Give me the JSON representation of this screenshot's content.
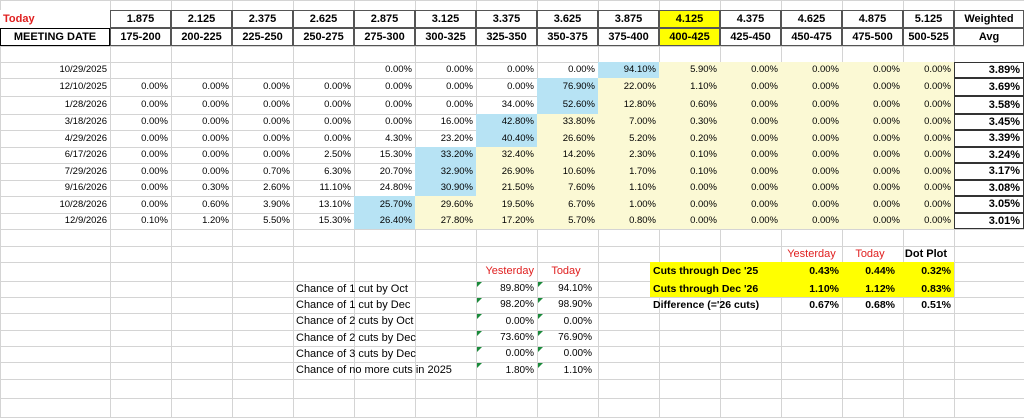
{
  "header": {
    "today_label": "Today",
    "meeting_date_label": "MEETING DATE",
    "weighted_label": "Weighted",
    "avg_label": "Avg",
    "midpoints": [
      "1.875",
      "2.125",
      "2.375",
      "2.625",
      "2.875",
      "3.125",
      "3.375",
      "3.625",
      "3.875",
      "4.125",
      "4.375",
      "4.625",
      "4.875",
      "5.125"
    ],
    "ranges": [
      "175-200",
      "200-225",
      "225-250",
      "250-275",
      "275-300",
      "300-325",
      "325-350",
      "350-375",
      "375-400",
      "400-425",
      "425-450",
      "450-475",
      "475-500",
      "500-525"
    ],
    "highlight_col": 9,
    "highlight_color": "#ffff00"
  },
  "colors": {
    "blue_cell": "#b7e3f4",
    "yellow_cell": "#fbf9d4",
    "red_text": "#e02020",
    "table_yellow": "#ffff00"
  },
  "rows": [
    {
      "date": "10/29/2025",
      "values": [
        "",
        "",
        "",
        "",
        "0.00%",
        "0.00%",
        "0.00%",
        "0.00%",
        "94.10%",
        "5.90%",
        "0.00%",
        "0.00%",
        "0.00%",
        "0.00%"
      ],
      "avg": "3.89%",
      "blue": 8
    },
    {
      "date": "12/10/2025",
      "values": [
        "0.00%",
        "0.00%",
        "0.00%",
        "0.00%",
        "0.00%",
        "0.00%",
        "0.00%",
        "76.90%",
        "22.00%",
        "1.10%",
        "0.00%",
        "0.00%",
        "0.00%",
        "0.00%"
      ],
      "avg": "3.69%",
      "blue": 7
    },
    {
      "date": "1/28/2026",
      "values": [
        "0.00%",
        "0.00%",
        "0.00%",
        "0.00%",
        "0.00%",
        "0.00%",
        "34.00%",
        "52.60%",
        "12.80%",
        "0.60%",
        "0.00%",
        "0.00%",
        "0.00%",
        "0.00%"
      ],
      "avg": "3.58%",
      "blue": 7
    },
    {
      "date": "3/18/2026",
      "values": [
        "0.00%",
        "0.00%",
        "0.00%",
        "0.00%",
        "0.00%",
        "16.00%",
        "42.80%",
        "33.80%",
        "7.00%",
        "0.30%",
        "0.00%",
        "0.00%",
        "0.00%",
        "0.00%"
      ],
      "avg": "3.45%",
      "blue": 6
    },
    {
      "date": "4/29/2026",
      "values": [
        "0.00%",
        "0.00%",
        "0.00%",
        "0.00%",
        "4.30%",
        "23.20%",
        "40.40%",
        "26.60%",
        "5.20%",
        "0.20%",
        "0.00%",
        "0.00%",
        "0.00%",
        "0.00%"
      ],
      "avg": "3.39%",
      "blue": 6
    },
    {
      "date": "6/17/2026",
      "values": [
        "0.00%",
        "0.00%",
        "0.00%",
        "2.50%",
        "15.30%",
        "33.20%",
        "32.40%",
        "14.20%",
        "2.30%",
        "0.10%",
        "0.00%",
        "0.00%",
        "0.00%",
        "0.00%"
      ],
      "avg": "3.24%",
      "blue": 5
    },
    {
      "date": "7/29/2026",
      "values": [
        "0.00%",
        "0.00%",
        "0.70%",
        "6.30%",
        "20.70%",
        "32.90%",
        "26.90%",
        "10.60%",
        "1.70%",
        "0.10%",
        "0.00%",
        "0.00%",
        "0.00%",
        "0.00%"
      ],
      "avg": "3.17%",
      "blue": 5
    },
    {
      "date": "9/16/2026",
      "values": [
        "0.00%",
        "0.30%",
        "2.60%",
        "11.10%",
        "24.80%",
        "30.90%",
        "21.50%",
        "7.60%",
        "1.10%",
        "0.00%",
        "0.00%",
        "0.00%",
        "0.00%",
        "0.00%"
      ],
      "avg": "3.08%",
      "blue": 5
    },
    {
      "date": "10/28/2026",
      "values": [
        "0.00%",
        "0.60%",
        "3.90%",
        "13.10%",
        "25.70%",
        "29.60%",
        "19.50%",
        "6.70%",
        "1.00%",
        "0.00%",
        "0.00%",
        "0.00%",
        "0.00%",
        "0.00%"
      ],
      "avg": "3.05%",
      "blue": 4
    },
    {
      "date": "12/9/2026",
      "values": [
        "0.10%",
        "1.20%",
        "5.50%",
        "15.30%",
        "26.40%",
        "27.80%",
        "17.20%",
        "5.70%",
        "0.80%",
        "0.00%",
        "0.00%",
        "0.00%",
        "0.00%",
        "0.00%"
      ],
      "avg": "3.01%",
      "blue": 4
    }
  ],
  "chances": {
    "yesterday_label": "Yesterday",
    "today_label": "Today",
    "items": [
      {
        "label": "Chance of 1 cut by Oct",
        "yesterday": "89.80%",
        "today": "94.10%"
      },
      {
        "label": "Chance of 1 cut by Dec",
        "yesterday": "98.20%",
        "today": "98.90%"
      },
      {
        "label": "Chance of 2 cuts by Oct",
        "yesterday": "0.00%",
        "today": "0.00%"
      },
      {
        "label": "Chance of 2 cuts by Dec",
        "yesterday": "73.60%",
        "today": "76.90%"
      },
      {
        "label": "Chance of 3 cuts by Dec",
        "yesterday": "0.00%",
        "today": "0.00%"
      },
      {
        "label": "Chance of no more cuts in 2025",
        "yesterday": "1.80%",
        "today": "1.10%"
      }
    ]
  },
  "cuts": {
    "yesterday_label": "Yesterday",
    "today_label": "Today",
    "dotplot_label": "Dot Plot",
    "items": [
      {
        "label": "Cuts through Dec '25",
        "yesterday": "0.43%",
        "today": "0.44%",
        "dotplot": "0.32%",
        "highlight": true
      },
      {
        "label": "Cuts through Dec '26",
        "yesterday": "1.10%",
        "today": "1.12%",
        "dotplot": "0.83%",
        "highlight": true
      },
      {
        "label": "Difference (='26 cuts)",
        "yesterday": "0.67%",
        "today": "0.68%",
        "dotplot": "0.51%",
        "highlight": false
      }
    ]
  }
}
